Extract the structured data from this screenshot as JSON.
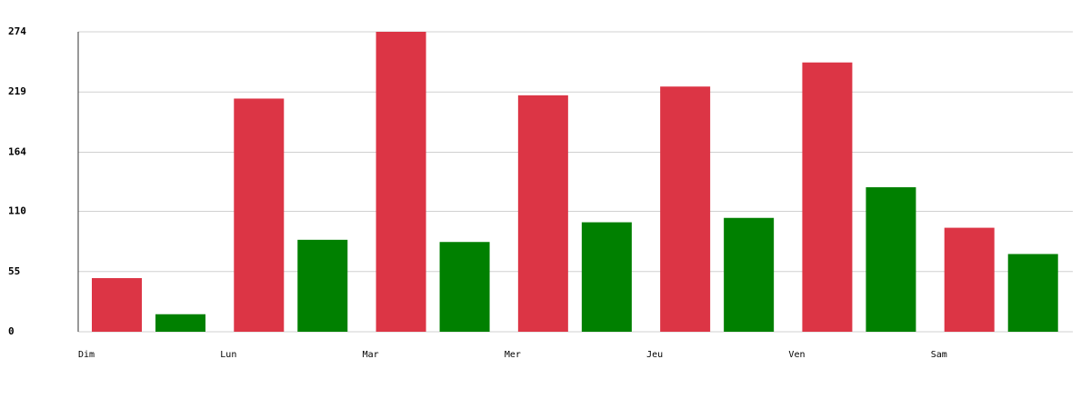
{
  "chart_data": {
    "type": "bar",
    "categories": [
      "Dim",
      "Lun",
      "Mar",
      "Mer",
      "Jeu",
      "Ven",
      "Sam"
    ],
    "series": [
      {
        "color": "#dc3545",
        "values": [
          49,
          213,
          274,
          216,
          224,
          246,
          95
        ]
      },
      {
        "color": "#008000",
        "values": [
          16,
          84,
          82,
          100,
          104,
          132,
          71
        ]
      }
    ],
    "ylim": [
      0,
      274
    ],
    "yticks": [
      0,
      55,
      110,
      164,
      219,
      274
    ],
    "grid": true
  }
}
